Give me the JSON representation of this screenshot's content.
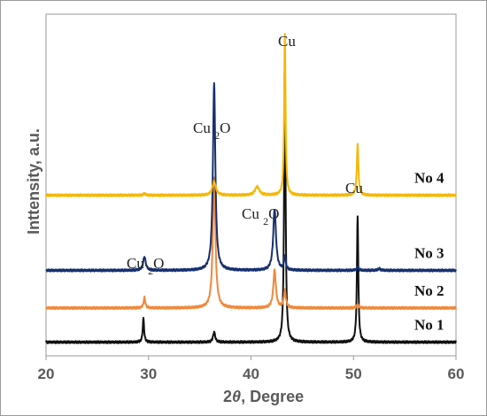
{
  "chart_data": {
    "type": "line",
    "xlabel_pre": "2",
    "xlabel_theta": "θ",
    "xlabel_post": ", Degree",
    "ylabel": "Inttensity, a.u.",
    "xlim": [
      20,
      60
    ],
    "x_ticks": [
      "20",
      "30",
      "40",
      "50",
      "60"
    ],
    "y_ticks_visible": false,
    "grid": false,
    "legend": "none",
    "series": [
      {
        "name": "No 1",
        "color": "#111111",
        "baseline": 0.04,
        "peaks": [
          {
            "x": 29.5,
            "h": 0.07,
            "w": 0.08
          },
          {
            "x": 36.4,
            "h": 0.03,
            "w": 0.12
          },
          {
            "x": 43.3,
            "h": 0.86,
            "w": 0.08
          },
          {
            "x": 50.4,
            "h": 0.37,
            "w": 0.08
          }
        ]
      },
      {
        "name": "No 2",
        "color": "#f0883a",
        "baseline": 0.14,
        "peaks": [
          {
            "x": 29.6,
            "h": 0.03,
            "w": 0.1
          },
          {
            "x": 36.4,
            "h": 0.38,
            "w": 0.15
          },
          {
            "x": 42.3,
            "h": 0.11,
            "w": 0.15
          },
          {
            "x": 43.3,
            "h": 0.05,
            "w": 0.12
          },
          {
            "x": 50.4,
            "h": 0.01,
            "w": 0.12
          }
        ]
      },
      {
        "name": "No 3",
        "color": "#16306e",
        "baseline": 0.25,
        "peaks": [
          {
            "x": 29.6,
            "h": 0.04,
            "w": 0.15
          },
          {
            "x": 36.4,
            "h": 0.55,
            "w": 0.14
          },
          {
            "x": 42.3,
            "h": 0.18,
            "w": 0.16
          },
          {
            "x": 43.3,
            "h": 0.04,
            "w": 0.1
          },
          {
            "x": 50.4,
            "h": 0.01,
            "w": 0.12
          },
          {
            "x": 52.5,
            "h": 0.005,
            "w": 0.15
          }
        ]
      },
      {
        "name": "No 4",
        "color": "#f5b800",
        "baseline": 0.47,
        "peaks": [
          {
            "x": 29.6,
            "h": 0.005,
            "w": 0.12
          },
          {
            "x": 36.4,
            "h": 0.04,
            "w": 0.2
          },
          {
            "x": 40.6,
            "h": 0.025,
            "w": 0.25
          },
          {
            "x": 43.3,
            "h": 0.47,
            "w": 0.08
          },
          {
            "x": 50.4,
            "h": 0.15,
            "w": 0.09
          }
        ]
      }
    ],
    "annotations": [
      {
        "label": "Cu",
        "formula": false
      },
      {
        "label": "Cu2O",
        "formula": true
      },
      {
        "label": "Cu2O",
        "formula": true
      },
      {
        "label": "Cu2O",
        "formula": true
      },
      {
        "label": "Cu",
        "formula": false
      }
    ]
  }
}
